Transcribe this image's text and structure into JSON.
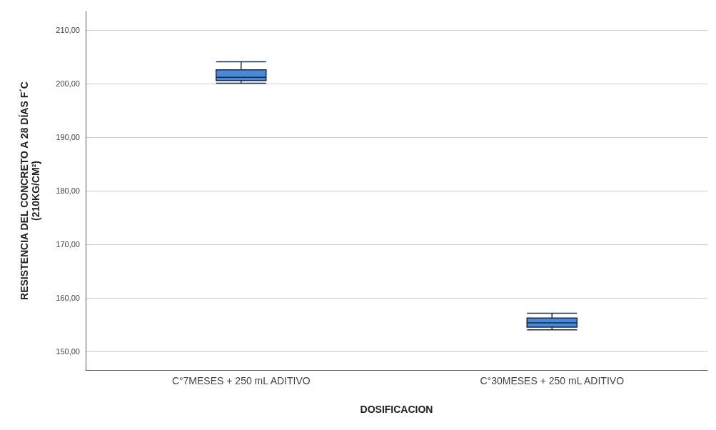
{
  "chart_data": {
    "type": "box",
    "xlabel": "DOSIFICACION",
    "ylabel": "RESISTENCIA DEL CONCRETO A 28 DÍAS F´C\n(210KG/CM²)",
    "categories": [
      "C°7MESES + 250 mL ADITIVO",
      "C°30MESES + 250 mL ADITIVO"
    ],
    "boxes": [
      {
        "low": 200.1,
        "q1": 200.6,
        "median": 201.2,
        "q3": 202.6,
        "high": 204.1
      },
      {
        "low": 154,
        "q1": 154.5,
        "median": 155.3,
        "q3": 156.2,
        "high": 157.1
      }
    ],
    "color": "#4a8ad4",
    "ylim": [
      146.5,
      213.5
    ],
    "yticks": [
      {
        "value": 150,
        "label": "150,00"
      },
      {
        "value": 160,
        "label": "160,00"
      },
      {
        "value": 170,
        "label": "170,00"
      },
      {
        "value": 180,
        "label": "180,00"
      },
      {
        "value": 190,
        "label": "190,00"
      },
      {
        "value": 200,
        "label": "200,00"
      },
      {
        "value": 210,
        "label": "210,00"
      }
    ],
    "grid": "y"
  }
}
